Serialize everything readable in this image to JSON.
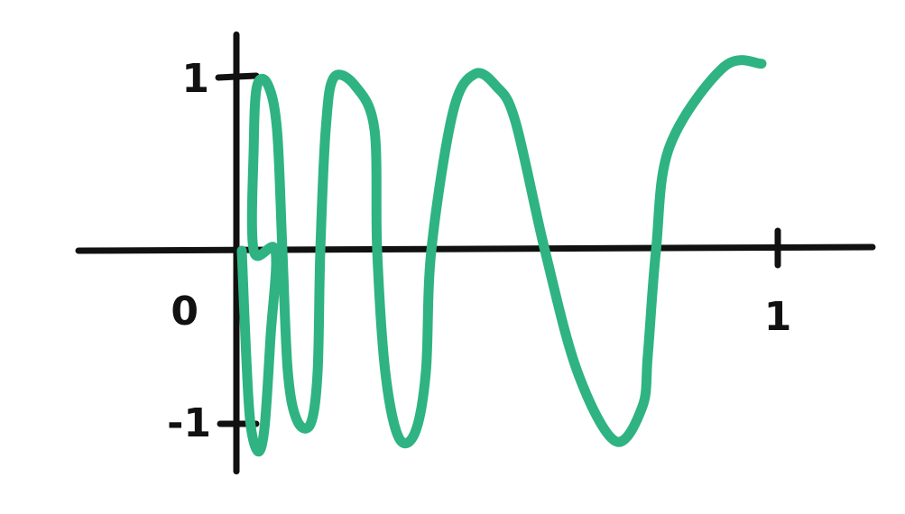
{
  "chart_data": {
    "type": "line",
    "title": "",
    "xlabel": "",
    "ylabel": "",
    "xlim": [
      -0.4,
      1.2
    ],
    "ylim": [
      -1.3,
      1.3
    ],
    "grid": false,
    "legend": "none",
    "origin_label": "0",
    "x_ticks": [
      {
        "value": 1,
        "label": "1"
      }
    ],
    "y_ticks": [
      {
        "value": 1,
        "label": "1"
      },
      {
        "value": -1,
        "label": "-1"
      }
    ],
    "series": [
      {
        "color": "#2fb383",
        "points": [
          [
            0.01,
            0.0
          ],
          [
            0.018,
            -0.6
          ],
          [
            0.026,
            -1.0
          ],
          [
            0.04,
            -1.16
          ],
          [
            0.052,
            -1.02
          ],
          [
            0.063,
            -0.5
          ],
          [
            0.072,
            0.0
          ],
          [
            0.032,
            0.0
          ],
          [
            0.032,
            0.6
          ],
          [
            0.038,
            0.95
          ],
          [
            0.058,
            0.96
          ],
          [
            0.075,
            0.7
          ],
          [
            0.085,
            0.0
          ],
          [
            0.095,
            -0.7
          ],
          [
            0.112,
            -0.98
          ],
          [
            0.137,
            -1.0
          ],
          [
            0.15,
            -0.7
          ],
          [
            0.155,
            0.0
          ],
          [
            0.165,
            0.7
          ],
          [
            0.18,
            1.0
          ],
          [
            0.22,
            0.95
          ],
          [
            0.255,
            0.7
          ],
          [
            0.26,
            0.0
          ],
          [
            0.275,
            -0.7
          ],
          [
            0.3,
            -1.08
          ],
          [
            0.33,
            -1.05
          ],
          [
            0.35,
            -0.7
          ],
          [
            0.36,
            0.0
          ],
          [
            0.4,
            0.8
          ],
          [
            0.44,
            1.02
          ],
          [
            0.48,
            0.95
          ],
          [
            0.515,
            0.75
          ],
          [
            0.57,
            0.0
          ],
          [
            0.63,
            -0.7
          ],
          [
            0.7,
            -1.1
          ],
          [
            0.75,
            -0.9
          ],
          [
            0.76,
            -0.6
          ],
          [
            0.775,
            0.0
          ],
          [
            0.8,
            0.6
          ],
          [
            0.9,
            1.06
          ],
          [
            0.97,
            1.08
          ]
        ]
      }
    ]
  }
}
